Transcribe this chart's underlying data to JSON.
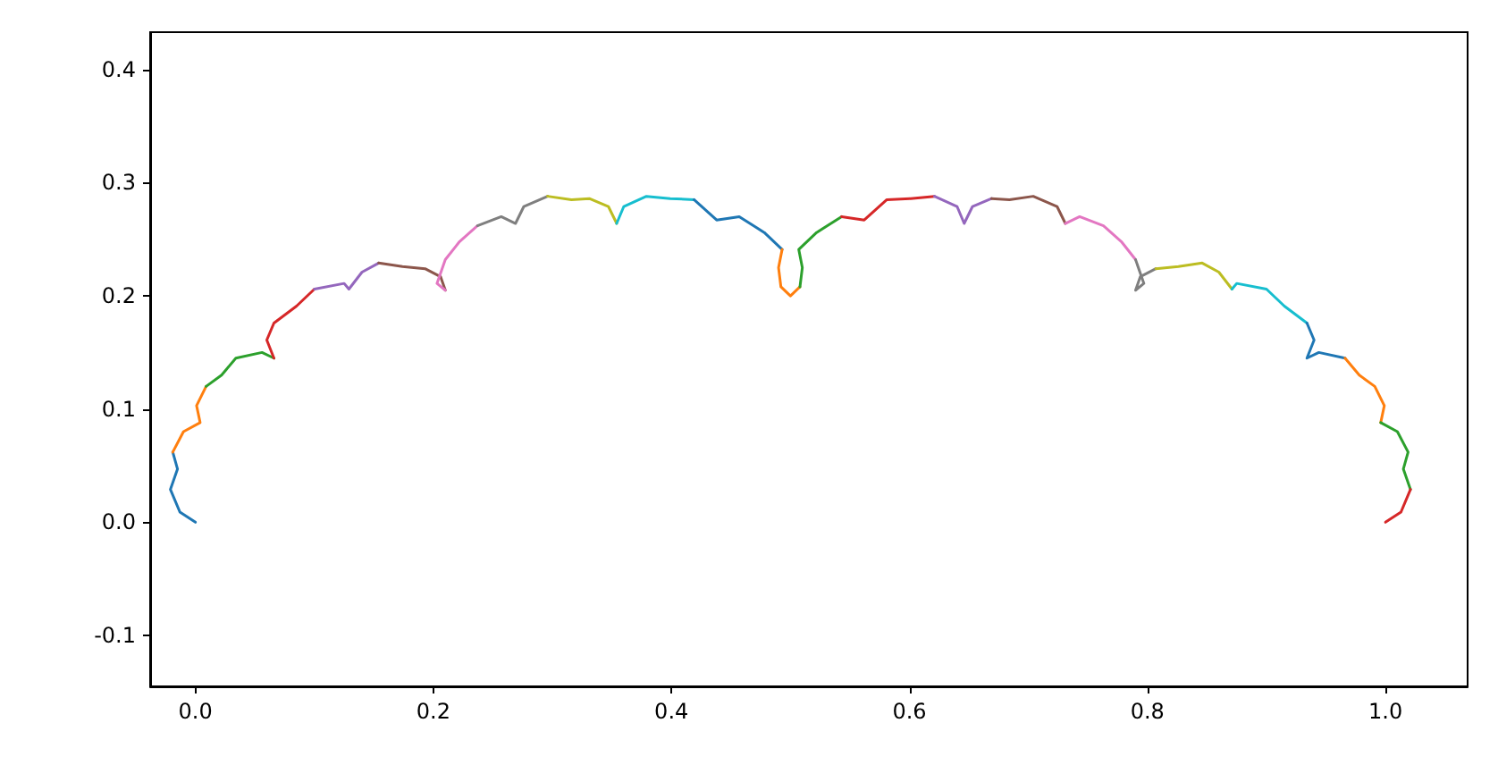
{
  "chart_data": {
    "type": "line",
    "xlim": [
      -0.038,
      1.069
    ],
    "ylim": [
      -0.145,
      0.433
    ],
    "xticks": [
      {
        "value": 0,
        "label": "0.0"
      },
      0.2,
      0.4,
      0.6,
      0.8,
      {
        "value": 1,
        "label": "1.0"
      }
    ],
    "yticks": [
      -0.1,
      {
        "value": 0,
        "label": "0.0"
      },
      0.1,
      0.2,
      0.3,
      0.4
    ],
    "grid": false,
    "marker": "none",
    "line_style": "solid",
    "series": [
      {
        "color": "#1f77b4",
        "x": [
          0,
          -0.013,
          -0.021,
          -0.015,
          -0.019
        ],
        "values": [
          0,
          0.009,
          0.029,
          0.047,
          0.062
        ]
      },
      {
        "color": "#ff7f0e",
        "x": [
          -0.019,
          -0.01,
          0.004,
          0.001,
          0.009
        ],
        "values": [
          0.062,
          0.08,
          0.088,
          0.103,
          0.12
        ]
      },
      {
        "color": "#2ca02c",
        "x": [
          0.009,
          0.022,
          0.034,
          0.056,
          0.066
        ],
        "values": [
          0.12,
          0.13,
          0.145,
          0.15,
          0.145
        ]
      },
      {
        "color": "#d62728",
        "x": [
          0.066,
          0.06,
          0.066,
          0.085,
          0.1
        ],
        "values": [
          0.145,
          0.161,
          0.176,
          0.191,
          0.206
        ]
      },
      {
        "color": "#9467bd",
        "x": [
          0.1,
          0.125,
          0.129,
          0.14,
          0.154
        ],
        "values": [
          0.206,
          0.211,
          0.206,
          0.221,
          0.229
        ]
      },
      {
        "color": "#8c564b",
        "x": [
          0.154,
          0.174,
          0.193,
          0.206,
          0.21
        ],
        "values": [
          0.229,
          0.226,
          0.224,
          0.217,
          0.205
        ]
      },
      {
        "color": "#e377c2",
        "x": [
          0.21,
          0.203,
          0.21,
          0.222,
          0.237
        ],
        "values": [
          0.205,
          0.211,
          0.232,
          0.248,
          0.262
        ]
      },
      {
        "color": "#7f7f7f",
        "x": [
          0.237,
          0.257,
          0.269,
          0.276,
          0.296
        ],
        "values": [
          0.262,
          0.27,
          0.264,
          0.279,
          0.288
        ]
      },
      {
        "color": "#bcbd22",
        "x": [
          0.296,
          0.316,
          0.331,
          0.347,
          0.354
        ],
        "values": [
          0.288,
          0.285,
          0.286,
          0.279,
          0.264
        ]
      },
      {
        "color": "#17becf",
        "x": [
          0.354,
          0.36,
          0.379,
          0.399,
          0.419
        ],
        "values": [
          0.264,
          0.279,
          0.288,
          0.286,
          0.285
        ]
      },
      {
        "color": "#1f77b4",
        "x": [
          0.419,
          0.438,
          0.457,
          0.478,
          0.493
        ],
        "values": [
          0.285,
          0.267,
          0.27,
          0.256,
          0.241
        ]
      },
      {
        "color": "#ff7f0e",
        "x": [
          0.493,
          0.49,
          0.492,
          0.5,
          0.508
        ],
        "values": [
          0.241,
          0.225,
          0.208,
          0.2,
          0.208
        ]
      },
      {
        "color": "#2ca02c",
        "x": [
          0.508,
          0.51,
          0.507,
          0.522,
          0.543
        ],
        "values": [
          0.208,
          0.225,
          0.241,
          0.256,
          0.27
        ]
      },
      {
        "color": "#d62728",
        "x": [
          0.543,
          0.562,
          0.581,
          0.601,
          0.621
        ],
        "values": [
          0.27,
          0.267,
          0.285,
          0.286,
          0.288
        ]
      },
      {
        "color": "#9467bd",
        "x": [
          0.621,
          0.64,
          0.646,
          0.653,
          0.669
        ],
        "values": [
          0.288,
          0.279,
          0.264,
          0.279,
          0.286
        ]
      },
      {
        "color": "#8c564b",
        "x": [
          0.669,
          0.684,
          0.704,
          0.724,
          0.731
        ],
        "values": [
          0.286,
          0.285,
          0.288,
          0.279,
          0.264
        ]
      },
      {
        "color": "#e377c2",
        "x": [
          0.731,
          0.743,
          0.763,
          0.778,
          0.79
        ],
        "values": [
          0.264,
          0.27,
          0.262,
          0.248,
          0.232
        ]
      },
      {
        "color": "#7f7f7f",
        "x": [
          0.79,
          0.797,
          0.79,
          0.794,
          0.807
        ],
        "values": [
          0.232,
          0.211,
          0.205,
          0.217,
          0.224
        ]
      },
      {
        "color": "#bcbd22",
        "x": [
          0.807,
          0.826,
          0.846,
          0.86,
          0.871
        ],
        "values": [
          0.224,
          0.226,
          0.229,
          0.221,
          0.206
        ]
      },
      {
        "color": "#17becf",
        "x": [
          0.871,
          0.875,
          0.9,
          0.915,
          0.934
        ],
        "values": [
          0.206,
          0.211,
          0.206,
          0.191,
          0.176
        ]
      },
      {
        "color": "#1f77b4",
        "x": [
          0.934,
          0.94,
          0.934,
          0.944,
          0.966
        ],
        "values": [
          0.176,
          0.161,
          0.145,
          0.15,
          0.145
        ]
      },
      {
        "color": "#ff7f0e",
        "x": [
          0.966,
          0.978,
          0.991,
          0.999,
          0.996
        ],
        "values": [
          0.145,
          0.13,
          0.12,
          0.103,
          0.088
        ]
      },
      {
        "color": "#2ca02c",
        "x": [
          0.996,
          1.01,
          1.019,
          1.015,
          1.021
        ],
        "values": [
          0.088,
          0.08,
          0.062,
          0.047,
          0.029
        ]
      },
      {
        "color": "#d62728",
        "x": [
          1.021,
          1.013,
          1
        ],
        "values": [
          0.029,
          0.009,
          0
        ]
      }
    ]
  }
}
